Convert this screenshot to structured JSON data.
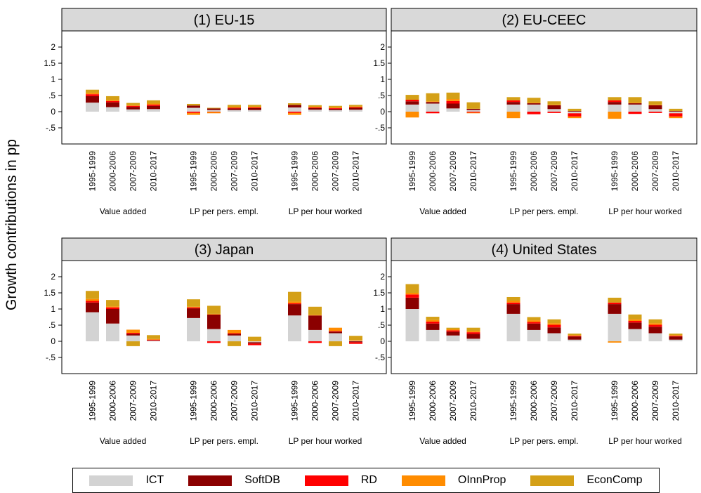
{
  "figure": {
    "ylabel": "Growth contributions in pp"
  },
  "legend": [
    {
      "name": "ICT",
      "color": "#d3d3d3"
    },
    {
      "name": "SoftDB",
      "color": "#8b0000"
    },
    {
      "name": "RD",
      "color": "#ff0000"
    },
    {
      "name": "OInnProp",
      "color": "#ff8c00"
    },
    {
      "name": "EconComp",
      "color": "#d4a017"
    }
  ],
  "chart_data": [
    {
      "type": "bar",
      "stacked": true,
      "title": "(1) EU-15",
      "group_labels": [
        "Value added",
        "LP per pers. empl.",
        "LP per hour worked"
      ],
      "categories": [
        "1995-1999",
        "2000-2006",
        "2007-2009",
        "2010-2017"
      ],
      "y_ticks": [
        "2",
        "1.5",
        "1",
        ".5",
        "0",
        "-.5"
      ],
      "ylim": [
        -1,
        2.5
      ],
      "grid": false,
      "series": [
        {
          "name": "ICT",
          "values": [
            [
              0.28,
              0.14,
              0.07,
              0.08
            ],
            [
              0.12,
              0.05,
              0.05,
              0.05
            ],
            [
              0.13,
              0.06,
              0.05,
              0.06
            ]
          ]
        },
        {
          "name": "SoftDB",
          "values": [
            [
              0.2,
              0.15,
              0.08,
              0.1
            ],
            [
              0.07,
              0.05,
              0.05,
              0.06
            ],
            [
              0.08,
              0.05,
              0.04,
              0.06
            ]
          ]
        },
        {
          "name": "RD",
          "values": [
            [
              0.06,
              0.04,
              0.03,
              0.04
            ],
            [
              -0.04,
              -0.01,
              0.02,
              0.02
            ],
            [
              -0.04,
              0.02,
              0.02,
              0.02
            ]
          ]
        },
        {
          "name": "OInnProp",
          "values": [
            [
              0.04,
              0.03,
              0.02,
              0.03
            ],
            [
              -0.06,
              -0.04,
              0.02,
              0.02
            ],
            [
              -0.06,
              0.02,
              0.02,
              0.02
            ]
          ]
        },
        {
          "name": "EconComp",
          "values": [
            [
              0.1,
              0.12,
              0.07,
              0.1
            ],
            [
              0.05,
              0.02,
              0.07,
              0.06
            ],
            [
              0.05,
              0.05,
              0.05,
              0.05
            ]
          ]
        }
      ]
    },
    {
      "type": "bar",
      "stacked": true,
      "title": "(2) EU-CEEC",
      "group_labels": [
        "Value added",
        "LP per pers. empl.",
        "LP per hour worked"
      ],
      "categories": [
        "1995-1999",
        "2000-2006",
        "2007-2009",
        "2010-2017"
      ],
      "y_ticks": [
        "2",
        "1.5",
        "1",
        ".5",
        "0",
        "-.5"
      ],
      "ylim": [
        -1,
        2.5
      ],
      "grid": false,
      "series": [
        {
          "name": "ICT",
          "values": [
            [
              0.22,
              0.25,
              0.1,
              0.05
            ],
            [
              0.22,
              0.22,
              0.08,
              -0.05
            ],
            [
              0.22,
              0.22,
              0.08,
              -0.05
            ]
          ]
        },
        {
          "name": "SoftDB",
          "values": [
            [
              0.1,
              0.05,
              0.15,
              0.04
            ],
            [
              0.08,
              0.04,
              0.12,
              0.02
            ],
            [
              0.08,
              0.04,
              0.12,
              0.02
            ]
          ]
        },
        {
          "name": "RD",
          "values": [
            [
              0.05,
              -0.05,
              0.08,
              -0.03
            ],
            [
              0.05,
              -0.08,
              -0.04,
              -0.1
            ],
            [
              0.05,
              -0.07,
              -0.04,
              -0.1
            ]
          ]
        },
        {
          "name": "OInnProp",
          "values": [
            [
              -0.18,
              0.02,
              0.06,
              -0.02
            ],
            [
              -0.2,
              0.02,
              0.02,
              -0.05
            ],
            [
              -0.22,
              0.02,
              0.02,
              -0.05
            ]
          ]
        },
        {
          "name": "EconComp",
          "values": [
            [
              0.15,
              0.25,
              0.2,
              0.2
            ],
            [
              0.1,
              0.15,
              0.1,
              0.07
            ],
            [
              0.1,
              0.17,
              0.1,
              0.07
            ]
          ]
        }
      ]
    },
    {
      "type": "bar",
      "stacked": true,
      "title": "(3) Japan",
      "group_labels": [
        "Value added",
        "LP per pers. empl.",
        "LP per hour worked"
      ],
      "categories": [
        "1995-1999",
        "2000-2006",
        "2007-2009",
        "2010-2017"
      ],
      "y_ticks": [
        "2",
        "1.5",
        "1",
        ".5",
        "0",
        "-.5"
      ],
      "ylim": [
        -1,
        2.5
      ],
      "grid": false,
      "series": [
        {
          "name": "ICT",
          "values": [
            [
              0.9,
              0.55,
              0.18,
              0.02
            ],
            [
              0.72,
              0.38,
              0.18,
              -0.03
            ],
            [
              0.8,
              0.35,
              0.25,
              0.02
            ]
          ]
        },
        {
          "name": "SoftDB",
          "values": [
            [
              0.3,
              0.45,
              0.05,
              0.01
            ],
            [
              0.3,
              0.45,
              0.05,
              -0.04
            ],
            [
              0.35,
              0.45,
              0.05,
              -0.03
            ]
          ]
        },
        {
          "name": "RD",
          "values": [
            [
              0.05,
              0.05,
              0.03,
              0.02
            ],
            [
              0.03,
              -0.05,
              0.02,
              -0.05
            ],
            [
              0.03,
              -0.05,
              0.02,
              -0.05
            ]
          ]
        },
        {
          "name": "OInnProp",
          "values": [
            [
              0.06,
              0.03,
              0.1,
              0.02
            ],
            [
              0.02,
              0.02,
              0.1,
              0.02
            ],
            [
              0.05,
              0.02,
              0.1,
              0.02
            ]
          ]
        },
        {
          "name": "EconComp",
          "values": [
            [
              0.25,
              0.2,
              -0.15,
              0.12
            ],
            [
              0.23,
              0.25,
              -0.15,
              0.12
            ],
            [
              0.3,
              0.25,
              -0.15,
              0.13
            ]
          ]
        }
      ]
    },
    {
      "type": "bar",
      "stacked": true,
      "title": "(4) United States",
      "group_labels": [
        "Value added",
        "LP per pers. empl.",
        "LP per hour worked"
      ],
      "categories": [
        "1995-1999",
        "2000-2006",
        "2007-2009",
        "2010-2017"
      ],
      "y_ticks": [
        "2",
        "1.5",
        "1",
        ".5",
        "0",
        "-.5"
      ],
      "ylim": [
        -1,
        2.5
      ],
      "grid": false,
      "series": [
        {
          "name": "ICT",
          "values": [
            [
              1.0,
              0.35,
              0.18,
              0.08
            ],
            [
              0.85,
              0.35,
              0.25,
              0.05
            ],
            [
              0.85,
              0.38,
              0.25,
              0.05
            ]
          ]
        },
        {
          "name": "SoftDB",
          "values": [
            [
              0.35,
              0.2,
              0.12,
              0.15
            ],
            [
              0.3,
              0.2,
              0.18,
              0.1
            ],
            [
              0.3,
              0.2,
              0.2,
              0.1
            ]
          ]
        },
        {
          "name": "RD",
          "values": [
            [
              0.1,
              0.06,
              0.04,
              0.05
            ],
            [
              0.05,
              0.05,
              0.08,
              0.02
            ],
            [
              0.05,
              0.05,
              0.06,
              0.02
            ]
          ]
        },
        {
          "name": "OInnProp",
          "values": [
            [
              0.05,
              0.05,
              0.03,
              0.04
            ],
            [
              0.05,
              0.05,
              0.05,
              0.02
            ],
            [
              -0.04,
              0.05,
              0.05,
              0.02
            ]
          ]
        },
        {
          "name": "EconComp",
          "values": [
            [
              0.27,
              0.1,
              0.05,
              0.1
            ],
            [
              0.12,
              0.1,
              0.12,
              0.05
            ],
            [
              0.15,
              0.15,
              0.12,
              0.05
            ]
          ]
        }
      ]
    }
  ]
}
